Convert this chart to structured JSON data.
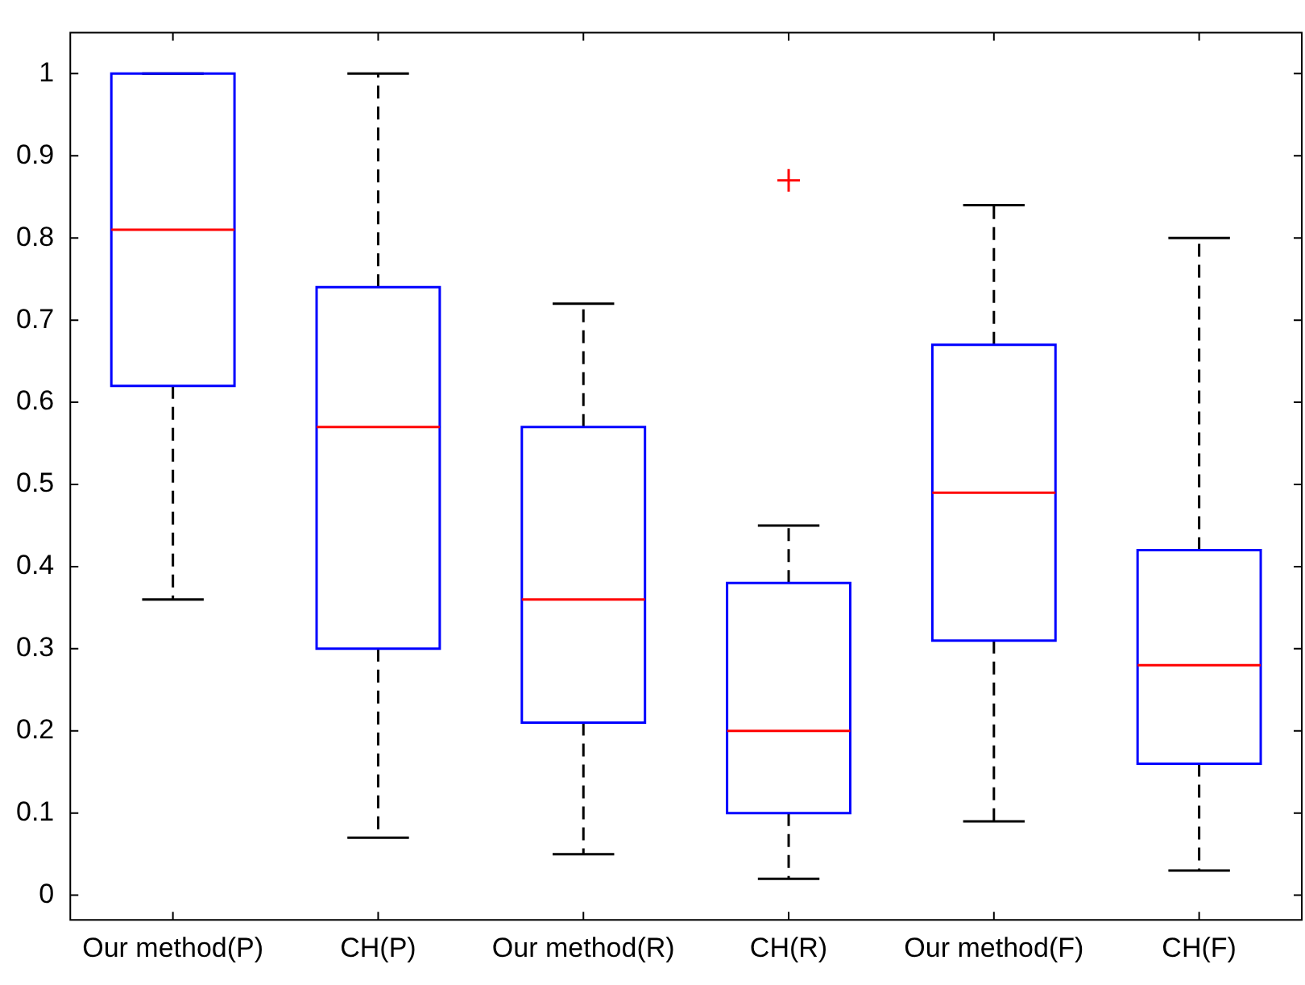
{
  "chart_data": {
    "type": "box",
    "categories": [
      "Our method(P)",
      "CH(P)",
      "Our method(R)",
      "CH(R)",
      "Our method(F)",
      "CH(F)"
    ],
    "series": [
      {
        "color": "#0000ff",
        "boxes": [
          {
            "low": 0.36,
            "q1": 0.62,
            "median": 0.81,
            "q3": 1.0,
            "high": 1.0
          },
          {
            "low": 0.07,
            "q1": 0.3,
            "median": 0.57,
            "q3": 0.74,
            "high": 1.0
          },
          {
            "low": 0.05,
            "q1": 0.21,
            "median": 0.36,
            "q3": 0.57,
            "high": 0.72
          },
          {
            "low": 0.02,
            "q1": 0.1,
            "median": 0.2,
            "q3": 0.38,
            "high": 0.45,
            "outliers": [
              0.87
            ]
          },
          {
            "low": 0.09,
            "q1": 0.31,
            "median": 0.49,
            "q3": 0.67,
            "high": 0.84
          },
          {
            "low": 0.03,
            "q1": 0.16,
            "median": 0.28,
            "q3": 0.42,
            "high": 0.8
          }
        ]
      }
    ],
    "ylim": [
      -0.03,
      1.05
    ],
    "yticks": [
      0,
      0.1,
      0.2,
      0.3,
      0.4,
      0.5,
      0.6,
      0.7,
      0.8,
      0.9,
      1
    ],
    "marker": "cross",
    "grid": false,
    "legend": false
  }
}
